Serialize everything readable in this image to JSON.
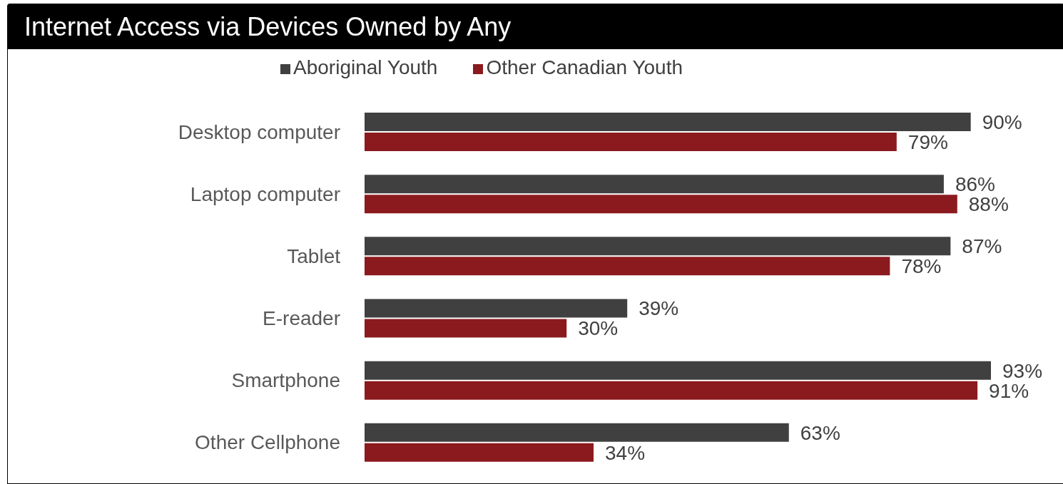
{
  "chart_data": {
    "type": "bar",
    "orientation": "horizontal",
    "title": "Internet Access via Devices Owned by Any",
    "categories": [
      "Desktop computer",
      "Laptop computer",
      "Tablet",
      "E-reader",
      "Smartphone",
      "Other Cellphone"
    ],
    "series": [
      {
        "name": "Aboriginal Youth",
        "color": "#404040",
        "values": [
          90,
          86,
          87,
          39,
          93,
          63
        ],
        "value_labels": [
          "90%",
          "86%",
          "87%",
          "39%",
          "93%",
          "63%"
        ]
      },
      {
        "name": "Other Canadian Youth",
        "color": "#8b1a1e",
        "values": [
          79,
          88,
          78,
          30,
          91,
          34
        ],
        "value_labels": [
          "79%",
          "88%",
          "78%",
          "30%",
          "91%",
          "34%"
        ]
      }
    ],
    "legend": "top",
    "grid": false
  }
}
